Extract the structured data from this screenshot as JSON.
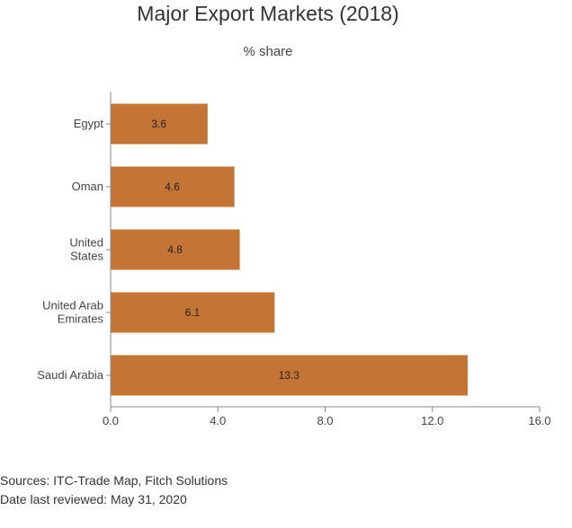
{
  "chart_data": {
    "type": "bar",
    "orientation": "horizontal",
    "title": "Major Export Markets (2018)",
    "subtitle": "% share",
    "categories": [
      "Egypt",
      "Oman",
      "United States",
      "United Arab Emirates",
      "Saudi Arabia"
    ],
    "category_lines": [
      [
        "Egypt"
      ],
      [
        "Oman"
      ],
      [
        "United",
        "States"
      ],
      [
        "United Arab",
        "Emirates"
      ],
      [
        "Saudi Arabia"
      ]
    ],
    "values": [
      3.6,
      4.6,
      4.8,
      6.1,
      13.3
    ],
    "value_labels": [
      "3.6",
      "4.6",
      "4.8",
      "6.1",
      "13.3"
    ],
    "xlim": [
      0,
      16
    ],
    "xticks": [
      0,
      4,
      8,
      12,
      16
    ],
    "xtick_labels": [
      "0.0",
      "4.0",
      "8.0",
      "12.0",
      "16.0"
    ],
    "bar_color": "#c47434",
    "grid": false
  },
  "footer": {
    "sources": "Sources: ITC-Trade Map, Fitch Solutions",
    "reviewed": "Date last reviewed: May 31, 2020"
  }
}
